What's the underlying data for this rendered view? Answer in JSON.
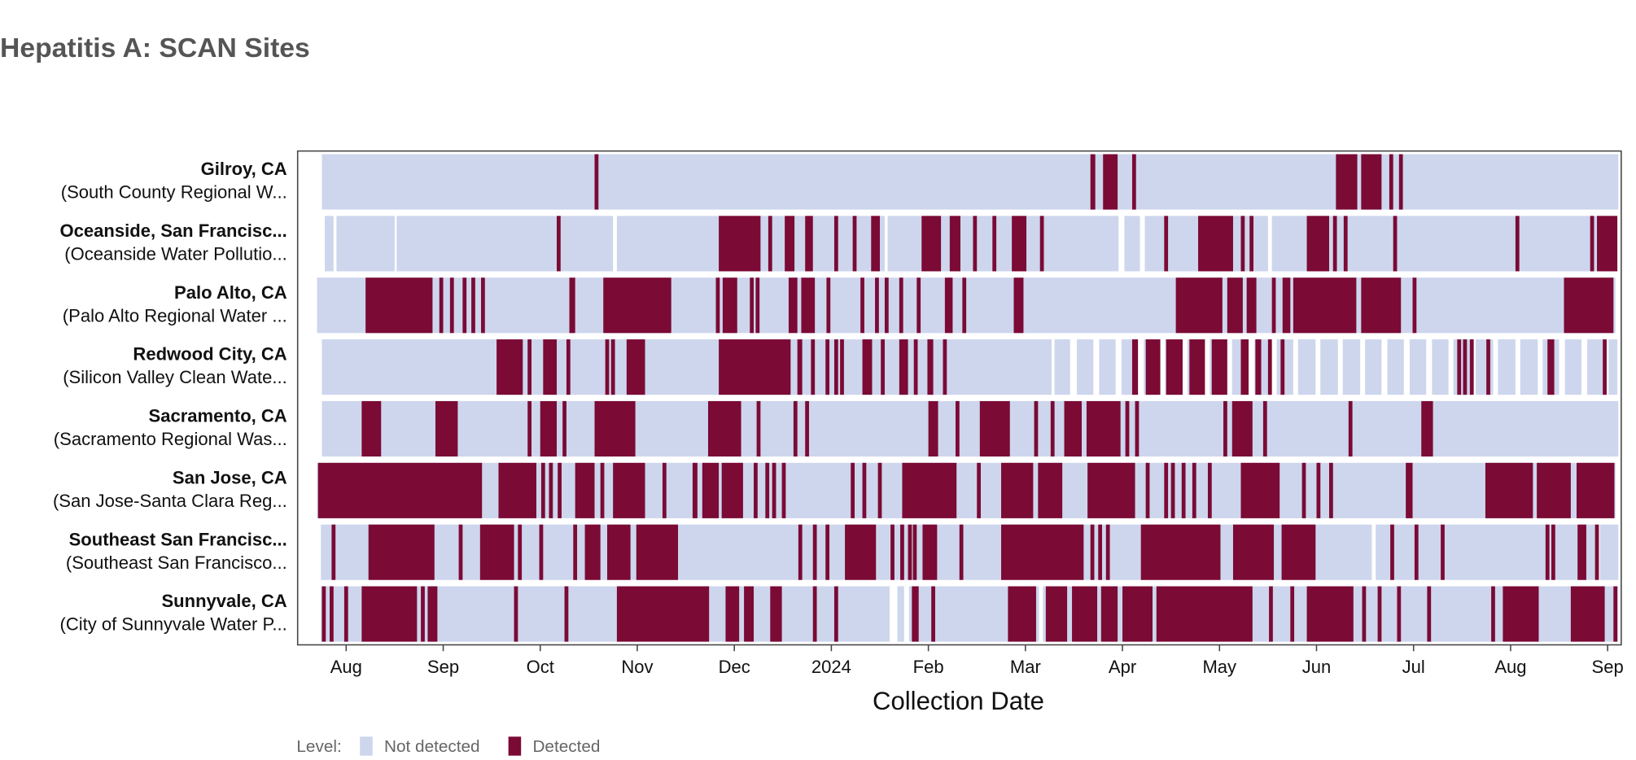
{
  "chart_data": {
    "type": "timeline",
    "title": "Hepatitis A: SCAN Sites",
    "x_label": "Collection Date",
    "legend_title": "Level:",
    "legend": [
      {
        "name": "Not detected",
        "color": "#cdd6ed"
      },
      {
        "name": "Detected",
        "color": "#7b0a35"
      }
    ],
    "xlim": [
      -0.5,
      13.14
    ],
    "xticks": [
      {
        "value": 0,
        "label": "Aug"
      },
      {
        "value": 1,
        "label": "Sep"
      },
      {
        "value": 2,
        "label": "Oct"
      },
      {
        "value": 3,
        "label": "Nov"
      },
      {
        "value": 4,
        "label": "Dec"
      },
      {
        "value": 5,
        "label": "2024"
      },
      {
        "value": 6,
        "label": "Feb"
      },
      {
        "value": 7,
        "label": "Mar"
      },
      {
        "value": 8,
        "label": "Apr"
      },
      {
        "value": 9,
        "label": "May"
      },
      {
        "value": 10,
        "label": "Jun"
      },
      {
        "value": 11,
        "label": "Jul"
      },
      {
        "value": 12,
        "label": "Aug"
      },
      {
        "value": 13,
        "label": "Sep"
      }
    ],
    "rows": [
      {
        "name": "Gilroy, CA",
        "facility": "(South County Regional W...",
        "not_detected": [
          [
            -0.25,
            13.11
          ]
        ],
        "detected": [
          [
            2.56,
            2.6
          ],
          [
            7.67,
            7.72
          ],
          [
            7.8,
            7.95
          ],
          [
            8.1,
            8.14
          ],
          [
            10.2,
            10.42
          ],
          [
            10.46,
            10.67
          ],
          [
            10.75,
            10.79
          ],
          [
            10.85,
            10.89
          ]
        ]
      },
      {
        "name": "Oceanside, San Francisc...",
        "facility": "(Oceanside Water Pollutio...",
        "not_detected": [
          [
            -0.22,
            -0.13
          ],
          [
            -0.1,
            0.5
          ],
          [
            0.52,
            2.75
          ],
          [
            2.79,
            5.55
          ],
          [
            5.58,
            7.96
          ],
          [
            8.02,
            8.18
          ],
          [
            8.23,
            9.5
          ],
          [
            9.54,
            13.1
          ]
        ],
        "detected": [
          [
            2.17,
            2.21
          ],
          [
            3.84,
            4.27
          ],
          [
            4.35,
            4.39
          ],
          [
            4.52,
            4.62
          ],
          [
            4.73,
            4.81
          ],
          [
            5.03,
            5.07
          ],
          [
            5.22,
            5.26
          ],
          [
            5.41,
            5.5
          ],
          [
            5.93,
            6.13
          ],
          [
            6.22,
            6.33
          ],
          [
            6.46,
            6.5
          ],
          [
            6.66,
            6.7
          ],
          [
            6.86,
            7.01
          ],
          [
            7.15,
            7.19
          ],
          [
            8.43,
            8.47
          ],
          [
            8.78,
            9.14
          ],
          [
            9.22,
            9.26
          ],
          [
            9.31,
            9.35
          ],
          [
            9.9,
            10.13
          ],
          [
            10.17,
            10.21
          ],
          [
            10.28,
            10.32
          ],
          [
            10.79,
            10.83
          ],
          [
            12.05,
            12.09
          ],
          [
            12.82,
            12.86
          ],
          [
            12.89,
            13.1
          ]
        ]
      },
      {
        "name": "Palo Alto, CA",
        "facility": "(Palo Alto Regional Water ...",
        "not_detected": [
          [
            -0.3,
            13.08
          ]
        ],
        "detected": [
          [
            0.2,
            0.89
          ],
          [
            0.96,
            1.0
          ],
          [
            1.07,
            1.11
          ],
          [
            1.2,
            1.24
          ],
          [
            1.29,
            1.33
          ],
          [
            1.39,
            1.43
          ],
          [
            2.3,
            2.36
          ],
          [
            2.65,
            3.35
          ],
          [
            3.81,
            3.85
          ],
          [
            3.88,
            4.03
          ],
          [
            4.16,
            4.2
          ],
          [
            4.22,
            4.26
          ],
          [
            4.56,
            4.65
          ],
          [
            4.69,
            4.83
          ],
          [
            4.95,
            4.99
          ],
          [
            5.3,
            5.34
          ],
          [
            5.45,
            5.49
          ],
          [
            5.55,
            5.59
          ],
          [
            5.7,
            5.74
          ],
          [
            5.88,
            5.92
          ],
          [
            6.17,
            6.25
          ],
          [
            6.35,
            6.39
          ],
          [
            6.88,
            6.98
          ],
          [
            8.55,
            9.03
          ],
          [
            9.08,
            9.24
          ],
          [
            9.28,
            9.38
          ],
          [
            9.54,
            9.58
          ],
          [
            9.65,
            9.73
          ],
          [
            9.76,
            10.41
          ],
          [
            10.46,
            10.87
          ],
          [
            10.99,
            11.03
          ],
          [
            12.55,
            13.06
          ]
        ]
      },
      {
        "name": "Redwood City, CA",
        "facility": "(Silicon Valley Clean Wate...",
        "not_detected": [
          [
            -0.25,
            7.27
          ],
          [
            7.3,
            7.46
          ],
          [
            7.53,
            7.7
          ],
          [
            7.76,
            7.93
          ],
          [
            7.99,
            8.16
          ],
          [
            8.22,
            8.39
          ],
          [
            8.44,
            8.62
          ],
          [
            8.67,
            8.85
          ],
          [
            8.9,
            9.08
          ],
          [
            9.13,
            9.3
          ],
          [
            9.36,
            9.53
          ],
          [
            9.59,
            9.76
          ],
          [
            9.81,
            9.99
          ],
          [
            10.04,
            10.22
          ],
          [
            10.27,
            10.45
          ],
          [
            10.5,
            10.67
          ],
          [
            10.73,
            10.9
          ],
          [
            10.96,
            11.13
          ],
          [
            11.19,
            11.36
          ],
          [
            11.41,
            11.59
          ],
          [
            11.64,
            11.82
          ],
          [
            11.87,
            12.05
          ],
          [
            12.1,
            12.28
          ],
          [
            12.33,
            12.5
          ],
          [
            12.56,
            12.73
          ],
          [
            12.79,
            12.96
          ],
          [
            13.01,
            13.1
          ]
        ],
        "detected": [
          [
            1.55,
            1.82
          ],
          [
            1.87,
            1.91
          ],
          [
            2.03,
            2.17
          ],
          [
            2.27,
            2.31
          ],
          [
            2.67,
            2.71
          ],
          [
            2.73,
            2.77
          ],
          [
            2.89,
            3.08
          ],
          [
            3.84,
            4.58
          ],
          [
            4.65,
            4.7
          ],
          [
            4.79,
            4.83
          ],
          [
            4.94,
            4.98
          ],
          [
            5.03,
            5.07
          ],
          [
            5.09,
            5.13
          ],
          [
            5.32,
            5.42
          ],
          [
            5.51,
            5.55
          ],
          [
            5.7,
            5.79
          ],
          [
            5.85,
            5.89
          ],
          [
            5.99,
            6.05
          ],
          [
            6.15,
            6.19
          ],
          [
            8.1,
            8.16
          ],
          [
            8.24,
            8.39
          ],
          [
            8.45,
            8.62
          ],
          [
            8.69,
            8.85
          ],
          [
            8.92,
            9.08
          ],
          [
            9.22,
            9.3
          ],
          [
            9.37,
            9.43
          ],
          [
            9.5,
            9.54
          ],
          [
            9.63,
            9.67
          ],
          [
            11.45,
            11.49
          ],
          [
            11.51,
            11.55
          ],
          [
            11.58,
            11.62
          ],
          [
            11.75,
            11.79
          ],
          [
            12.38,
            12.45
          ],
          [
            12.95,
            12.99
          ]
        ]
      },
      {
        "name": "Sacramento, CA",
        "facility": "(Sacramento Regional Was...",
        "not_detected": [
          [
            -0.25,
            13.11
          ]
        ],
        "detected": [
          [
            0.16,
            0.36
          ],
          [
            0.92,
            1.15
          ],
          [
            1.87,
            1.91
          ],
          [
            2.0,
            2.17
          ],
          [
            2.23,
            2.27
          ],
          [
            2.56,
            2.98
          ],
          [
            3.73,
            4.07
          ],
          [
            4.23,
            4.27
          ],
          [
            4.61,
            4.65
          ],
          [
            4.73,
            4.77
          ],
          [
            6.0,
            6.1
          ],
          [
            6.28,
            6.32
          ],
          [
            6.53,
            6.84
          ],
          [
            7.09,
            7.13
          ],
          [
            7.26,
            7.3
          ],
          [
            7.4,
            7.58
          ],
          [
            7.63,
            7.98
          ],
          [
            8.03,
            8.07
          ],
          [
            8.13,
            8.17
          ],
          [
            9.04,
            9.08
          ],
          [
            9.13,
            9.34
          ],
          [
            9.45,
            9.49
          ],
          [
            10.33,
            10.37
          ],
          [
            11.08,
            11.2
          ]
        ]
      },
      {
        "name": "San Jose, CA",
        "facility": "(San Jose-Santa Clara Reg...",
        "not_detected": [
          [
            -0.3,
            13.08
          ]
        ],
        "detected": [
          [
            -0.29,
            1.4
          ],
          [
            1.57,
            1.96
          ],
          [
            2.01,
            2.05
          ],
          [
            2.09,
            2.13
          ],
          [
            2.18,
            2.22
          ],
          [
            2.36,
            2.56
          ],
          [
            2.62,
            2.66
          ],
          [
            2.75,
            3.08
          ],
          [
            3.26,
            3.3
          ],
          [
            3.57,
            3.62
          ],
          [
            3.67,
            3.84
          ],
          [
            3.87,
            4.09
          ],
          [
            4.2,
            4.24
          ],
          [
            4.32,
            4.36
          ],
          [
            4.39,
            4.43
          ],
          [
            4.49,
            4.53
          ],
          [
            5.2,
            5.24
          ],
          [
            5.32,
            5.36
          ],
          [
            5.48,
            5.52
          ],
          [
            5.73,
            6.29
          ],
          [
            6.5,
            6.54
          ],
          [
            6.75,
            7.08
          ],
          [
            7.13,
            7.38
          ],
          [
            7.64,
            8.13
          ],
          [
            8.24,
            8.28
          ],
          [
            8.43,
            8.47
          ],
          [
            8.5,
            8.54
          ],
          [
            8.61,
            8.65
          ],
          [
            8.72,
            8.76
          ],
          [
            8.88,
            8.92
          ],
          [
            9.22,
            9.62
          ],
          [
            9.85,
            9.89
          ],
          [
            10.0,
            10.04
          ],
          [
            10.13,
            10.17
          ],
          [
            10.92,
            10.99
          ],
          [
            11.74,
            12.23
          ],
          [
            12.27,
            12.62
          ],
          [
            12.68,
            13.07
          ]
        ]
      },
      {
        "name": "Southeast San Francisc...",
        "facility": "(Southeast San Francisco...",
        "not_detected": [
          [
            -0.26,
            10.57
          ],
          [
            10.61,
            12.88
          ],
          [
            12.92,
            13.11
          ]
        ],
        "detected": [
          [
            -0.15,
            -0.11
          ],
          [
            0.23,
            0.91
          ],
          [
            1.16,
            1.2
          ],
          [
            1.38,
            1.73
          ],
          [
            1.77,
            1.81
          ],
          [
            1.99,
            2.03
          ],
          [
            2.34,
            2.38
          ],
          [
            2.46,
            2.62
          ],
          [
            2.69,
            2.93
          ],
          [
            2.99,
            3.42
          ],
          [
            4.66,
            4.7
          ],
          [
            4.81,
            4.85
          ],
          [
            4.94,
            4.98
          ],
          [
            5.14,
            5.46
          ],
          [
            5.61,
            5.65
          ],
          [
            5.71,
            5.75
          ],
          [
            5.79,
            5.83
          ],
          [
            5.84,
            5.88
          ],
          [
            5.94,
            6.09
          ],
          [
            6.32,
            6.36
          ],
          [
            6.75,
            7.6
          ],
          [
            7.67,
            7.71
          ],
          [
            7.75,
            7.79
          ],
          [
            7.83,
            7.87
          ],
          [
            8.19,
            9.01
          ],
          [
            9.14,
            9.56
          ],
          [
            9.64,
            9.99
          ],
          [
            10.76,
            10.8
          ],
          [
            11.01,
            11.05
          ],
          [
            11.28,
            11.32
          ],
          [
            12.36,
            12.4
          ],
          [
            12.42,
            12.46
          ],
          [
            12.69,
            12.78
          ],
          [
            12.87,
            12.91
          ]
        ]
      },
      {
        "name": "Sunnyvale, CA",
        "facility": "(City of Sunnyvale Water P...",
        "not_detected": [
          [
            -0.26,
            5.6
          ],
          [
            5.68,
            5.75
          ],
          [
            5.8,
            7.14
          ],
          [
            7.18,
            13.11
          ]
        ],
        "detected": [
          [
            -0.25,
            -0.21
          ],
          [
            -0.17,
            -0.13
          ],
          [
            -0.02,
            0.02
          ],
          [
            0.16,
            0.73
          ],
          [
            0.77,
            0.81
          ],
          [
            0.84,
            0.94
          ],
          [
            1.73,
            1.77
          ],
          [
            2.25,
            2.29
          ],
          [
            2.79,
            3.74
          ],
          [
            3.91,
            4.05
          ],
          [
            4.1,
            4.2
          ],
          [
            4.37,
            4.49
          ],
          [
            4.81,
            4.85
          ],
          [
            5.03,
            5.07
          ],
          [
            5.83,
            5.9
          ],
          [
            6.03,
            6.07
          ],
          [
            6.82,
            7.11
          ],
          [
            7.21,
            7.43
          ],
          [
            7.48,
            7.74
          ],
          [
            7.78,
            7.95
          ],
          [
            8.0,
            8.31
          ],
          [
            8.35,
            9.34
          ],
          [
            9.51,
            9.55
          ],
          [
            9.73,
            9.77
          ],
          [
            9.9,
            10.38
          ],
          [
            10.47,
            10.51
          ],
          [
            10.63,
            10.67
          ],
          [
            10.83,
            10.87
          ],
          [
            11.14,
            11.18
          ],
          [
            11.8,
            11.84
          ],
          [
            11.92,
            12.29
          ],
          [
            12.62,
            12.97
          ],
          [
            13.06,
            13.1
          ]
        ]
      }
    ]
  }
}
